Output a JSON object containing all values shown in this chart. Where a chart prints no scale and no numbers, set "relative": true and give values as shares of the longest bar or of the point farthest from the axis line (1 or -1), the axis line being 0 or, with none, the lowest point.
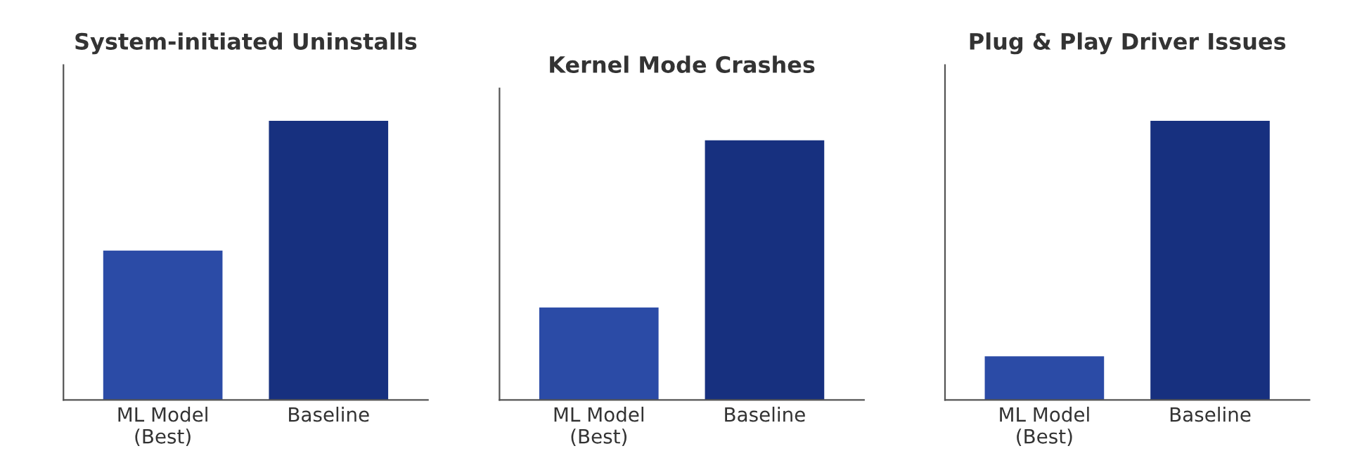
{
  "chart_data": [
    {
      "type": "bar",
      "title": "System-initiated Uninstalls",
      "categories": [
        "ML Model\n(Best)",
        "Baseline"
      ],
      "values": [
        0.535,
        1
      ],
      "colors": [
        "#2b4ba6",
        "#17307f"
      ],
      "relative": true,
      "grid": false,
      "legend": false
    },
    {
      "type": "bar",
      "title": "Kernel Mode Crashes",
      "categories": [
        "ML Model\n(Best)",
        "Baseline"
      ],
      "values": [
        0.356,
        1
      ],
      "colors": [
        "#2b4ba6",
        "#17307f"
      ],
      "relative": true,
      "grid": false,
      "legend": false
    },
    {
      "type": "bar",
      "title": "Plug & Play Driver Issues",
      "categories": [
        "ML Model\n(Best)",
        "Baseline"
      ],
      "values": [
        0.156,
        1
      ],
      "colors": [
        "#2b4ba6",
        "#17307f"
      ],
      "relative": true,
      "grid": false,
      "legend": false
    }
  ]
}
